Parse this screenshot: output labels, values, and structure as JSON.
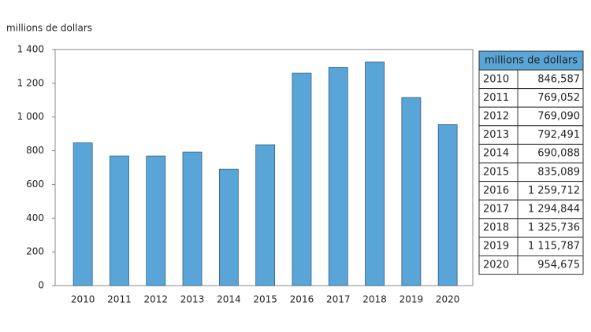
{
  "chart_data": {
    "type": "bar",
    "title": "millions de dollars",
    "categories": [
      "2010",
      "2011",
      "2012",
      "2013",
      "2014",
      "2015",
      "2016",
      "2017",
      "2018",
      "2019",
      "2020"
    ],
    "values": [
      846.587,
      769.052,
      769.09,
      792.491,
      690.088,
      835.089,
      1259.712,
      1294.844,
      1325.736,
      1115.787,
      954.675
    ],
    "value_labels": [
      "846,587",
      "769,052",
      "769,090",
      "792,491",
      "690,088",
      "835,089",
      "1 259,712",
      "1 294,844",
      "1 325,736",
      "1 115,787",
      "954,675"
    ],
    "color": "#5aa5d8",
    "ylim": [
      0,
      1400
    ],
    "yticks": [
      0,
      200,
      400,
      600,
      800,
      {
        "value": 1000,
        "label": "1 000"
      },
      {
        "value": 1200,
        "label": "1 200"
      },
      {
        "value": 1400,
        "label": "1 400"
      }
    ],
    "grid": false
  }
}
